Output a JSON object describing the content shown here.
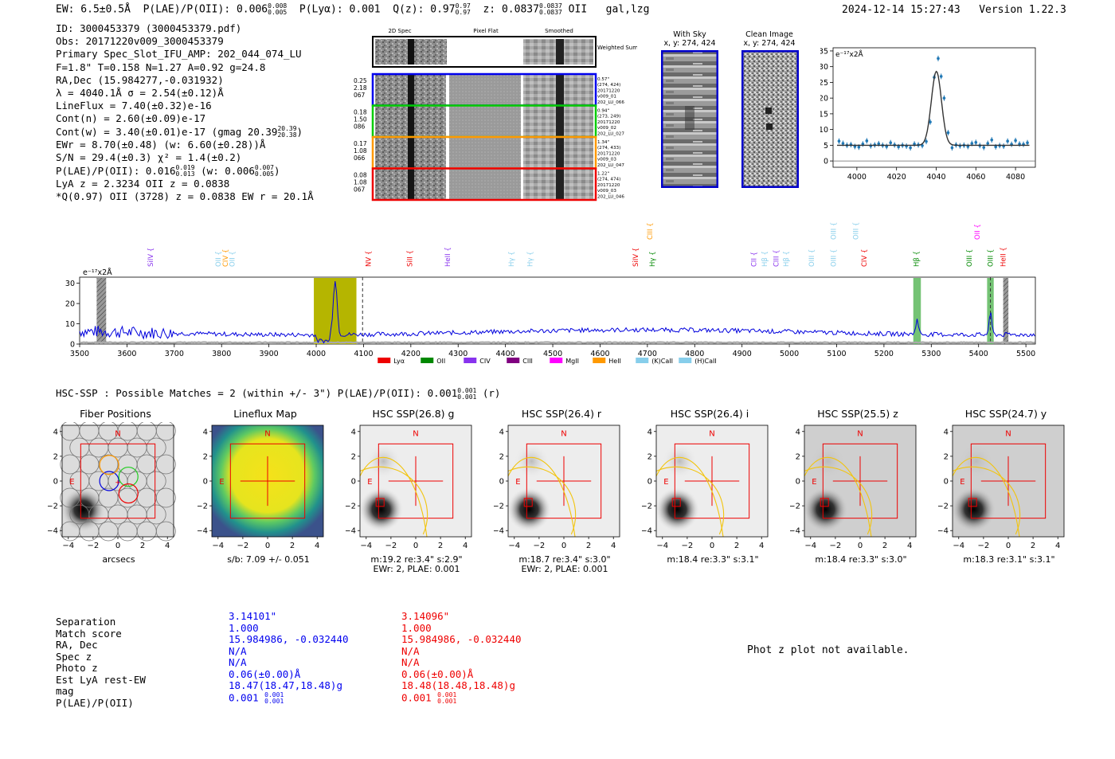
{
  "header": {
    "ew": "EW: 6.5±0.5Å",
    "plae_label": "P(LAE)/P(OII):",
    "plae_val": "0.006",
    "plae_hi": "0.008",
    "plae_lo": "0.005",
    "plya": "P(Lyα): 0.001",
    "qz_label": "Q(z): 0.97",
    "qz_hi": "0.97",
    "qz_lo": "0.97",
    "z_label": "z: 0.0837",
    "z_hi": "0.0837",
    "z_lo": "0.0837",
    "z_line": "OII",
    "flags": "gal,lzg",
    "timestamp": "2024-12-14 15:27:43",
    "version": "Version 1.22.3"
  },
  "info": {
    "id": "ID: 3000453379 (3000453379.pdf)",
    "obs": "Obs: 20171220v009_3000453379",
    "primary": "Primary Spec_Slot_IFU_AMP: 202_044_074_LU",
    "fwhm": "F=1.8\"  T=0.158  N=1.27  A=0.92  g=24.8",
    "radec": "RA,Dec (15.984277,-0.031932)",
    "lambda": "λ = 4040.1Å  σ = 2.54(±0.12)Å",
    "lineflux": "LineFlux = 7.40(±0.32)e-16",
    "contn": "Cont(n) = 2.60(±0.09)e-17",
    "contw": "Cont(w) = 3.40(±0.01)e-17 (gmag 20.39",
    "contw_hi": "20.39",
    "contw_lo": "20.38",
    "contw_end": ")",
    "ewr": "EWr = 8.70(±0.48) (w: 6.60(±0.28))Å",
    "sn": "S/N = 29.4(±0.3)  χ² = 1.4(±0.2)",
    "plae": "P(LAE)/P(OII): 0.016",
    "plae_hi": "0.019",
    "plae_lo": "0.013",
    "plae_w": "(w: 0.006",
    "plae_w_hi": "0.007",
    "plae_w_lo": "0.005",
    "plae_w_end": ")",
    "lyaz": "LyA z = 2.3234   OII z = 0.0838",
    "qline": "*Q(0.97) OII (3728) z = 0.0838  EW r = 20.1Å"
  },
  "spec2d": {
    "col_labels": [
      "2D Spec",
      "Pixel Flat",
      "Smoothed"
    ],
    "weighted": "Weighted Sum",
    "rows": [
      {
        "left": [
          "0.25",
          "2.18",
          "067"
        ],
        "right": [
          "0.57\"",
          "(274, 424)",
          "20171220",
          "v009_01",
          "202_LU_066"
        ],
        "color": "#0000ee"
      },
      {
        "left": [
          "0.18",
          "1.50",
          "086"
        ],
        "right": [
          "0.94\"",
          "(273, 249)",
          "20171220",
          "v009_02",
          "202_LU_027"
        ],
        "color": "#00cc00"
      },
      {
        "left": [
          "0.17",
          "1.08",
          "066"
        ],
        "right": [
          "1.34\"",
          "(274, 433)",
          "20171220",
          "v009_03",
          "202_LU_047"
        ],
        "color": "#ff9900"
      },
      {
        "left": [
          "0.08",
          "1.08",
          "067"
        ],
        "right": [
          "1.22\"",
          "(274, 474)",
          "20171220",
          "v009_03",
          "202_LU_046"
        ],
        "color": "#ee0000"
      }
    ]
  },
  "sky": {
    "with_sky": "With Sky",
    "with_sky_xy": "x, y: 274, 424",
    "clean": "Clean Image",
    "clean_xy": "x, y: 274, 424"
  },
  "chart_data": [
    {
      "type": "scatter",
      "title": "",
      "ylabel": "e⁻¹⁷x2Å",
      "xlim": [
        3988,
        4090
      ],
      "ylim": [
        -2,
        36
      ],
      "xticks": [
        4000,
        4020,
        4040,
        4060,
        4080
      ],
      "yticks": [
        0,
        5,
        10,
        15,
        20,
        25,
        30,
        35
      ],
      "points": [
        [
          3991,
          6.3
        ],
        [
          3993,
          5.6
        ],
        [
          3995,
          5.0
        ],
        [
          3997,
          5.2
        ],
        [
          3999,
          4.6
        ],
        [
          4001,
          4.4
        ],
        [
          4003,
          5.4
        ],
        [
          4005,
          6.4
        ],
        [
          4007,
          4.8
        ],
        [
          4009,
          5.1
        ],
        [
          4011,
          5.5
        ],
        [
          4013,
          5.0
        ],
        [
          4015,
          4.6
        ],
        [
          4017,
          5.8
        ],
        [
          4019,
          5.1
        ],
        [
          4021,
          4.5
        ],
        [
          4023,
          5.0
        ],
        [
          4025,
          4.7
        ],
        [
          4027,
          4.2
        ],
        [
          4029,
          5.4
        ],
        [
          4031,
          5.1
        ],
        [
          4033,
          4.9
        ],
        [
          4035,
          6.2
        ],
        [
          4037,
          12.4
        ],
        [
          4039,
          26.6
        ],
        [
          4041,
          32.6
        ],
        [
          4042.5,
          26.9
        ],
        [
          4044,
          20.0
        ],
        [
          4046,
          9.0
        ],
        [
          4048,
          4.2
        ],
        [
          4050,
          5.1
        ],
        [
          4052,
          4.8
        ],
        [
          4054,
          5.0
        ],
        [
          4056,
          4.6
        ],
        [
          4058,
          5.6
        ],
        [
          4060,
          5.9
        ],
        [
          4062,
          4.9
        ],
        [
          4064,
          4.3
        ],
        [
          4066,
          5.6
        ],
        [
          4068,
          6.7
        ],
        [
          4070,
          4.5
        ],
        [
          4072,
          4.9
        ],
        [
          4074,
          4.7
        ],
        [
          4076,
          6.3
        ],
        [
          4078,
          5.3
        ],
        [
          4080,
          6.5
        ],
        [
          4082,
          5.4
        ],
        [
          4084,
          5.3
        ],
        [
          4086,
          5.8
        ]
      ],
      "fit": {
        "center": 4040.1,
        "sigma": 2.54,
        "amplitude": 23.5,
        "continuum": 5.0
      }
    },
    {
      "type": "line",
      "ylabel": "e⁻¹⁷x2Å",
      "xlim": [
        3500,
        5520
      ],
      "ylim": [
        0,
        33
      ],
      "xticks": [
        3500,
        3600,
        3700,
        3800,
        3900,
        4000,
        4100,
        4200,
        4300,
        4400,
        4500,
        4600,
        4700,
        4800,
        4900,
        5000,
        5100,
        5200,
        5300,
        5400,
        5500
      ],
      "yticks": [
        0,
        10,
        20,
        30
      ],
      "emission_peaks": [
        {
          "x": 4040,
          "y": 32
        },
        {
          "x": 5270,
          "y": 12
        },
        {
          "x": 5425,
          "y": 15
        }
      ],
      "highlight_band": [
        3995,
        4085
      ],
      "dashed_lines": [
        4098,
        5425
      ],
      "masked_regions": [
        [
          3536,
          3556
        ],
        [
          5452,
          5463
        ]
      ],
      "line_markers": [
        {
          "label": "SiIV",
          "x": 3650,
          "color": "#8833ee",
          "level": 1
        },
        {
          "label": "OII",
          "x": 3793,
          "color": "#87ceeb",
          "level": 1
        },
        {
          "label": "CIV",
          "x": 3808,
          "color": "#ff9900",
          "level": 1
        },
        {
          "label": "OII",
          "x": 3822,
          "color": "#87ceeb",
          "level": 1
        },
        {
          "label": "NV",
          "x": 4110,
          "color": "#ee0000",
          "level": 1
        },
        {
          "label": "SiII",
          "x": 4198,
          "color": "#ee0000",
          "level": 1
        },
        {
          "label": "HeII",
          "x": 4278,
          "color": "#8833ee",
          "level": 1
        },
        {
          "label": "Hγ",
          "x": 4412,
          "color": "#87ceeb",
          "level": 1
        },
        {
          "label": "Hγ",
          "x": 4452,
          "color": "#87ceeb",
          "level": 1
        },
        {
          "label": "SiIV",
          "x": 4675,
          "color": "#ee0000",
          "level": 1
        },
        {
          "label": "CIII",
          "x": 4705,
          "color": "#ff9900",
          "level": 2
        },
        {
          "label": "Hγ",
          "x": 4710,
          "color": "#008800",
          "level": 1
        },
        {
          "label": "CII",
          "x": 4925,
          "color": "#8833ee",
          "level": 1
        },
        {
          "label": "Hβ",
          "x": 4948,
          "color": "#87ceeb",
          "level": 1
        },
        {
          "label": "CIII",
          "x": 4972,
          "color": "#8833ee",
          "level": 1
        },
        {
          "label": "Hβ",
          "x": 4993,
          "color": "#87ceeb",
          "level": 1
        },
        {
          "label": "OIII",
          "x": 5047,
          "color": "#87ceeb",
          "level": 1
        },
        {
          "label": "OIII",
          "x": 5093,
          "color": "#87ceeb",
          "level": 1
        },
        {
          "label": "OIII",
          "x": 5093,
          "color": "#87ceeb",
          "level": 2
        },
        {
          "label": "OIII",
          "x": 5140,
          "color": "#87ceeb",
          "level": 2
        },
        {
          "label": "CIV",
          "x": 5158,
          "color": "#ee0000",
          "level": 1
        },
        {
          "label": "Hβ",
          "x": 5268,
          "color": "#008800",
          "level": 1
        },
        {
          "label": "OIII",
          "x": 5380,
          "color": "#008800",
          "level": 1
        },
        {
          "label": "OII",
          "x": 5397,
          "color": "#ff00ff",
          "level": 2
        },
        {
          "label": "OIII",
          "x": 5425,
          "color": "#008800",
          "level": 1
        },
        {
          "label": "HeII",
          "x": 5452,
          "color": "#ee0000",
          "level": 1
        }
      ],
      "legend": [
        {
          "label": "Lyα",
          "color": "#ee0000"
        },
        {
          "label": "OII",
          "color": "#008800"
        },
        {
          "label": "CIV",
          "color": "#8833ee"
        },
        {
          "label": "CIII",
          "color": "#800080"
        },
        {
          "label": "MgII",
          "color": "#ff00ff"
        },
        {
          "label": "HeII",
          "color": "#ff9900"
        },
        {
          "label": "(K)CaII",
          "color": "#87ceeb"
        },
        {
          "label": "(H)CaII",
          "color": "#87ceeb"
        }
      ]
    }
  ],
  "hsc": {
    "heading": "HSC-SSP : Possible Matches = 2 (within +/- 3\")  P(LAE)/P(OII):",
    "heading_val": "0.001",
    "heading_hi": "0.001",
    "heading_lo": "0.001",
    "heading_end": "(r)"
  },
  "cutouts": [
    {
      "title": "Fiber Positions",
      "cap1": "arcsecs",
      "cap2": "",
      "ticks": [
        "−4",
        "−2",
        "0",
        "2",
        "4"
      ],
      "yticks": [
        "4",
        "2",
        "0",
        "−2",
        "−4"
      ],
      "n": "N",
      "e": "E"
    },
    {
      "title": "Lineflux Map",
      "cap1": "s/b: 7.09 +/- 0.051",
      "cap2": "",
      "ticks": [
        "−4",
        "−2",
        "0",
        "2",
        "4"
      ],
      "yticks": [
        "4",
        "2",
        "0",
        "−2",
        "−4"
      ],
      "n": "N",
      "e": "E"
    },
    {
      "title": "HSC SSP(26.8) g",
      "cap1": "m:19.2  re:3.4\"  s:2.9\"",
      "cap2": "EWr: 2, PLAE: 0.001",
      "ticks": [
        "−4",
        "−2",
        "0",
        "2",
        "4"
      ],
      "yticks": [
        "4",
        "2",
        "0",
        "−2",
        "−4"
      ],
      "n": "N",
      "e": "E"
    },
    {
      "title": "HSC SSP(26.4) r",
      "cap1": "m:18.7  re:3.4\"  s:3.0\"",
      "cap2": "EWr: 2, PLAE: 0.001",
      "ticks": [
        "−4",
        "−2",
        "0",
        "2",
        "4"
      ],
      "yticks": [
        "4",
        "2",
        "0",
        "−2",
        "−4"
      ],
      "n": "N",
      "e": "E"
    },
    {
      "title": "HSC SSP(26.4) i",
      "cap1": "m:18.4  re:3.3\"  s:3.1\"",
      "cap2": "",
      "ticks": [
        "−4",
        "−2",
        "0",
        "2",
        "4"
      ],
      "yticks": [
        "4",
        "2",
        "0",
        "−2",
        "−4"
      ],
      "n": "N",
      "e": "E"
    },
    {
      "title": "HSC SSP(25.5) z",
      "cap1": "m:18.4  re:3.3\"  s:3.0\"",
      "cap2": "",
      "ticks": [
        "−4",
        "−2",
        "0",
        "2",
        "4"
      ],
      "yticks": [
        "4",
        "2",
        "0",
        "−2",
        "−4"
      ],
      "n": "N",
      "e": "E"
    },
    {
      "title": "HSC SSP(24.7) y",
      "cap1": "m:18.3  re:3.1\"  s:3.1\"",
      "cap2": "",
      "ticks": [
        "−4",
        "−2",
        "0",
        "2",
        "4"
      ],
      "yticks": [
        "4",
        "2",
        "0",
        "−2",
        "−4"
      ],
      "n": "N",
      "e": "E"
    }
  ],
  "table": {
    "labels": [
      "Separation",
      "Match score",
      "RA, Dec",
      "Spec z",
      "Photo z",
      "Est LyA rest-EW",
      "mag",
      "P(LAE)/P(OII)"
    ],
    "col1": [
      "3.14101\"",
      "1.000",
      "15.984986, -0.032440",
      "N/A",
      "N/A",
      "0.06(±0.00)Å",
      "18.47(18.47,18.48)g",
      "0.001"
    ],
    "col1_plae_hi": "0.001",
    "col1_plae_lo": "0.001",
    "col2": [
      "3.14096\"",
      "1.000",
      "15.984986, -0.032440",
      "N/A",
      "N/A",
      "0.06(±0.00)Å",
      "18.48(18.48,18.48)g",
      "0.001"
    ],
    "col2_plae_hi": "0.001",
    "col2_plae_lo": "0.001"
  },
  "photz": "Phot z plot not available."
}
